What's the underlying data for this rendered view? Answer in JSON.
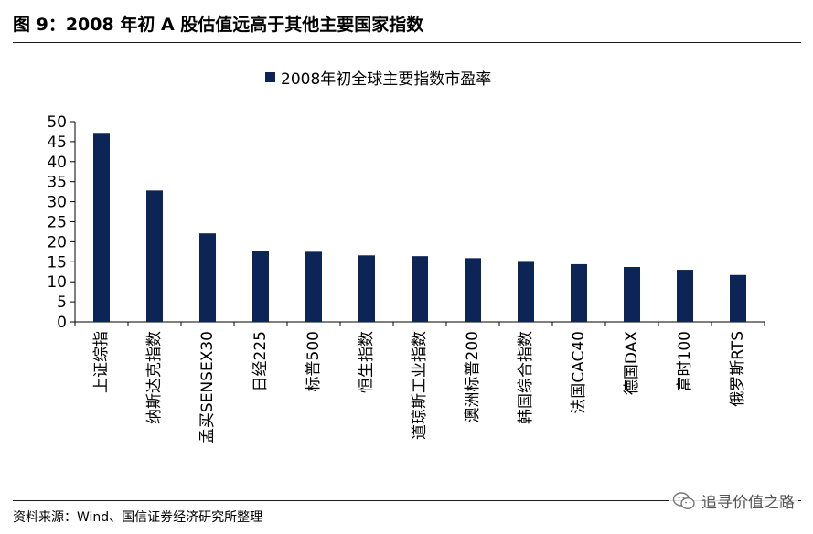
{
  "figure": {
    "title": "图 9：2008 年初 A 股估值远高于其他主要国家指数",
    "source": "资料来源：Wind、国信证券经济研究所整理",
    "watermark": "追寻价值之路",
    "watermark_icon": "wechat-icon"
  },
  "chart_data": {
    "type": "bar",
    "title": "",
    "legend": [
      "2008年初全球主要指数市盈率"
    ],
    "legend_position": "top-center",
    "categories": [
      "上证综指",
      "纳斯达克指数",
      "孟买SENSEX30",
      "日经225",
      "标普500",
      "恒生指数",
      "道琼斯工业指数",
      "澳洲标普200",
      "韩国综合指数",
      "法国CAC40",
      "德国DAX",
      "富时100",
      "俄罗斯RTS"
    ],
    "series": [
      {
        "name": "2008年初全球主要指数市盈率",
        "color": "#0d2456",
        "values": [
          47.2,
          32.8,
          22.1,
          17.6,
          17.5,
          16.6,
          16.4,
          15.9,
          15.2,
          14.4,
          13.7,
          13.0,
          11.7
        ]
      }
    ],
    "ylim": [
      0,
      50
    ],
    "yticks": [
      0,
      5,
      10,
      15,
      20,
      25,
      30,
      35,
      40,
      45,
      50
    ],
    "grid": false,
    "xlabel": "",
    "ylabel": ""
  }
}
